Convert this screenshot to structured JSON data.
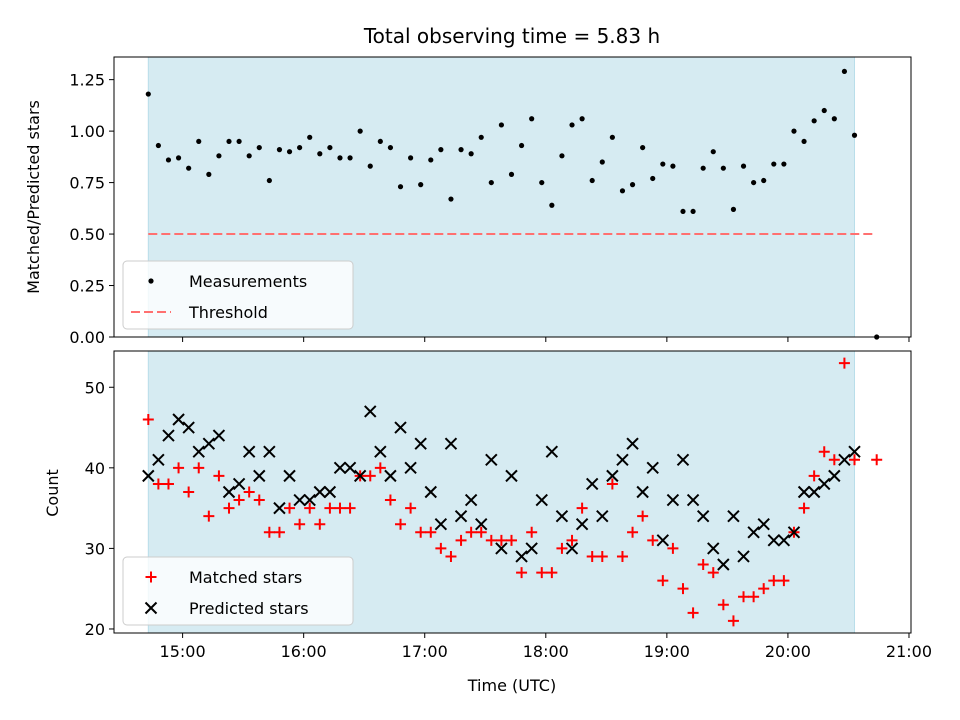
{
  "chart_data": [
    {
      "type": "scatter",
      "title": "Total observing time = 5.83 h",
      "xlabel": "",
      "ylabel": "Matched/Predicted stars",
      "ylim": [
        0,
        1.36
      ],
      "xlim": [
        "14:26",
        "21:01"
      ],
      "yticks": [
        "0.00",
        "0.25",
        "0.50",
        "0.75",
        "1.00",
        "1.25"
      ],
      "shaded_span": {
        "from": "14:43",
        "to": "20:33",
        "color": "#add8e6"
      },
      "legend_position": "lower-left",
      "series": [
        {
          "name": "Measurements",
          "marker": "dot",
          "color": "#000000",
          "points": [
            [
              "14:43",
              1.18
            ],
            [
              "14:48",
              0.93
            ],
            [
              "14:53",
              0.86
            ],
            [
              "14:58",
              0.87
            ],
            [
              "15:03",
              0.82
            ],
            [
              "15:08",
              0.95
            ],
            [
              "15:13",
              0.79
            ],
            [
              "15:18",
              0.88
            ],
            [
              "15:23",
              0.95
            ],
            [
              "15:28",
              0.95
            ],
            [
              "15:33",
              0.88
            ],
            [
              "15:38",
              0.92
            ],
            [
              "15:43",
              0.76
            ],
            [
              "15:48",
              0.91
            ],
            [
              "15:53",
              0.9
            ],
            [
              "15:58",
              0.92
            ],
            [
              "16:03",
              0.97
            ],
            [
              "16:08",
              0.89
            ],
            [
              "16:13",
              0.92
            ],
            [
              "16:18",
              0.87
            ],
            [
              "16:23",
              0.87
            ],
            [
              "16:28",
              1.0
            ],
            [
              "16:33",
              0.83
            ],
            [
              "16:38",
              0.95
            ],
            [
              "16:43",
              0.92
            ],
            [
              "16:48",
              0.73
            ],
            [
              "16:53",
              0.87
            ],
            [
              "16:58",
              0.74
            ],
            [
              "17:03",
              0.86
            ],
            [
              "17:08",
              0.91
            ],
            [
              "17:13",
              0.67
            ],
            [
              "17:18",
              0.91
            ],
            [
              "17:23",
              0.89
            ],
            [
              "17:28",
              0.97
            ],
            [
              "17:33",
              0.75
            ],
            [
              "17:38",
              1.03
            ],
            [
              "17:43",
              0.79
            ],
            [
              "17:48",
              0.93
            ],
            [
              "17:53",
              1.06
            ],
            [
              "17:58",
              0.75
            ],
            [
              "18:03",
              0.64
            ],
            [
              "18:08",
              0.88
            ],
            [
              "18:13",
              1.03
            ],
            [
              "18:18",
              1.06
            ],
            [
              "18:23",
              0.76
            ],
            [
              "18:28",
              0.85
            ],
            [
              "18:33",
              0.97
            ],
            [
              "18:38",
              0.71
            ],
            [
              "18:43",
              0.74
            ],
            [
              "18:48",
              0.92
            ],
            [
              "18:53",
              0.77
            ],
            [
              "18:58",
              0.84
            ],
            [
              "19:03",
              0.83
            ],
            [
              "19:08",
              0.61
            ],
            [
              "19:13",
              0.61
            ],
            [
              "19:18",
              0.82
            ],
            [
              "19:23",
              0.9
            ],
            [
              "19:28",
              0.82
            ],
            [
              "19:33",
              0.62
            ],
            [
              "19:38",
              0.83
            ],
            [
              "19:43",
              0.75
            ],
            [
              "19:48",
              0.76
            ],
            [
              "19:53",
              0.84
            ],
            [
              "19:58",
              0.84
            ],
            [
              "20:03",
              1.0
            ],
            [
              "20:08",
              0.95
            ],
            [
              "20:13",
              1.05
            ],
            [
              "20:18",
              1.1
            ],
            [
              "20:23",
              1.06
            ],
            [
              "20:28",
              1.29
            ],
            [
              "20:33",
              0.98
            ],
            [
              "20:44",
              0.0
            ]
          ]
        },
        {
          "name": "Threshold",
          "marker": "dashed-line",
          "color": "#ff7070",
          "points": [
            [
              "14:43",
              0.5
            ],
            [
              "20:42",
              0.5
            ]
          ]
        }
      ]
    },
    {
      "type": "scatter",
      "title": "",
      "xlabel": "Time (UTC)",
      "ylabel": "Count",
      "ylim": [
        19.5,
        54.5
      ],
      "xlim": [
        "14:26",
        "21:01"
      ],
      "yticks": [
        "20",
        "30",
        "40",
        "50"
      ],
      "xticks": [
        "15:00",
        "16:00",
        "17:00",
        "18:00",
        "19:00",
        "20:00",
        "21:00"
      ],
      "shaded_span": {
        "from": "14:43",
        "to": "20:33",
        "color": "#add8e6"
      },
      "legend_position": "lower-left",
      "series": [
        {
          "name": "Matched stars",
          "marker": "plus",
          "color": "#ff0000",
          "points": [
            [
              "14:43",
              46
            ],
            [
              "14:48",
              38
            ],
            [
              "14:53",
              38
            ],
            [
              "14:58",
              40
            ],
            [
              "15:03",
              37
            ],
            [
              "15:08",
              40
            ],
            [
              "15:13",
              34
            ],
            [
              "15:18",
              39
            ],
            [
              "15:23",
              35
            ],
            [
              "15:28",
              36
            ],
            [
              "15:33",
              37
            ],
            [
              "15:38",
              36
            ],
            [
              "15:43",
              32
            ],
            [
              "15:48",
              32
            ],
            [
              "15:53",
              35
            ],
            [
              "15:58",
              33
            ],
            [
              "16:03",
              35
            ],
            [
              "16:08",
              33
            ],
            [
              "16:13",
              35
            ],
            [
              "16:18",
              35
            ],
            [
              "16:23",
              35
            ],
            [
              "16:28",
              39
            ],
            [
              "16:33",
              39
            ],
            [
              "16:38",
              40
            ],
            [
              "16:43",
              36
            ],
            [
              "16:48",
              33
            ],
            [
              "16:53",
              35
            ],
            [
              "16:58",
              32
            ],
            [
              "17:03",
              32
            ],
            [
              "17:08",
              30
            ],
            [
              "17:13",
              29
            ],
            [
              "17:18",
              31
            ],
            [
              "17:23",
              32
            ],
            [
              "17:28",
              32
            ],
            [
              "17:33",
              31
            ],
            [
              "17:38",
              31
            ],
            [
              "17:43",
              31
            ],
            [
              "17:48",
              27
            ],
            [
              "17:53",
              32
            ],
            [
              "17:58",
              27
            ],
            [
              "18:03",
              27
            ],
            [
              "18:08",
              30
            ],
            [
              "18:13",
              31
            ],
            [
              "18:18",
              35
            ],
            [
              "18:23",
              29
            ],
            [
              "18:28",
              29
            ],
            [
              "18:33",
              38
            ],
            [
              "18:38",
              29
            ],
            [
              "18:43",
              32
            ],
            [
              "18:48",
              34
            ],
            [
              "18:53",
              31
            ],
            [
              "18:58",
              26
            ],
            [
              "19:03",
              30
            ],
            [
              "19:08",
              25
            ],
            [
              "19:13",
              22
            ],
            [
              "19:18",
              28
            ],
            [
              "19:23",
              27
            ],
            [
              "19:28",
              23
            ],
            [
              "19:33",
              21
            ],
            [
              "19:38",
              24
            ],
            [
              "19:43",
              24
            ],
            [
              "19:48",
              25
            ],
            [
              "19:53",
              26
            ],
            [
              "19:58",
              26
            ],
            [
              "20:03",
              32
            ],
            [
              "20:08",
              35
            ],
            [
              "20:13",
              39
            ],
            [
              "20:18",
              42
            ],
            [
              "20:23",
              41
            ],
            [
              "20:28",
              53
            ],
            [
              "20:33",
              41
            ],
            [
              "20:44",
              41
            ]
          ]
        },
        {
          "name": "Predicted stars",
          "marker": "x",
          "color": "#000000",
          "points": [
            [
              "14:43",
              39
            ],
            [
              "14:48",
              41
            ],
            [
              "14:53",
              44
            ],
            [
              "14:58",
              46
            ],
            [
              "15:03",
              45
            ],
            [
              "15:08",
              42
            ],
            [
              "15:13",
              43
            ],
            [
              "15:18",
              44
            ],
            [
              "15:23",
              37
            ],
            [
              "15:28",
              38
            ],
            [
              "15:33",
              42
            ],
            [
              "15:38",
              39
            ],
            [
              "15:43",
              42
            ],
            [
              "15:48",
              35
            ],
            [
              "15:53",
              39
            ],
            [
              "15:58",
              36
            ],
            [
              "16:03",
              36
            ],
            [
              "16:08",
              37
            ],
            [
              "16:13",
              37
            ],
            [
              "16:18",
              40
            ],
            [
              "16:23",
              40
            ],
            [
              "16:28",
              39
            ],
            [
              "16:33",
              47
            ],
            [
              "16:38",
              42
            ],
            [
              "16:43",
              39
            ],
            [
              "16:48",
              45
            ],
            [
              "16:53",
              40
            ],
            [
              "16:58",
              43
            ],
            [
              "17:03",
              37
            ],
            [
              "17:08",
              33
            ],
            [
              "17:13",
              43
            ],
            [
              "17:18",
              34
            ],
            [
              "17:23",
              36
            ],
            [
              "17:28",
              33
            ],
            [
              "17:33",
              41
            ],
            [
              "17:38",
              30
            ],
            [
              "17:43",
              39
            ],
            [
              "17:48",
              29
            ],
            [
              "17:53",
              30
            ],
            [
              "17:58",
              36
            ],
            [
              "18:03",
              42
            ],
            [
              "18:08",
              34
            ],
            [
              "18:13",
              30
            ],
            [
              "18:18",
              33
            ],
            [
              "18:23",
              38
            ],
            [
              "18:28",
              34
            ],
            [
              "18:33",
              39
            ],
            [
              "18:38",
              41
            ],
            [
              "18:43",
              43
            ],
            [
              "18:48",
              37
            ],
            [
              "18:53",
              40
            ],
            [
              "18:58",
              31
            ],
            [
              "19:03",
              36
            ],
            [
              "19:08",
              41
            ],
            [
              "19:13",
              36
            ],
            [
              "19:18",
              34
            ],
            [
              "19:23",
              30
            ],
            [
              "19:28",
              28
            ],
            [
              "19:33",
              34
            ],
            [
              "19:38",
              29
            ],
            [
              "19:43",
              32
            ],
            [
              "19:48",
              33
            ],
            [
              "19:53",
              31
            ],
            [
              "19:58",
              31
            ],
            [
              "20:03",
              32
            ],
            [
              "20:08",
              37
            ],
            [
              "20:13",
              37
            ],
            [
              "20:18",
              38
            ],
            [
              "20:23",
              39
            ],
            [
              "20:28",
              41
            ],
            [
              "20:33",
              42
            ]
          ]
        }
      ]
    }
  ]
}
